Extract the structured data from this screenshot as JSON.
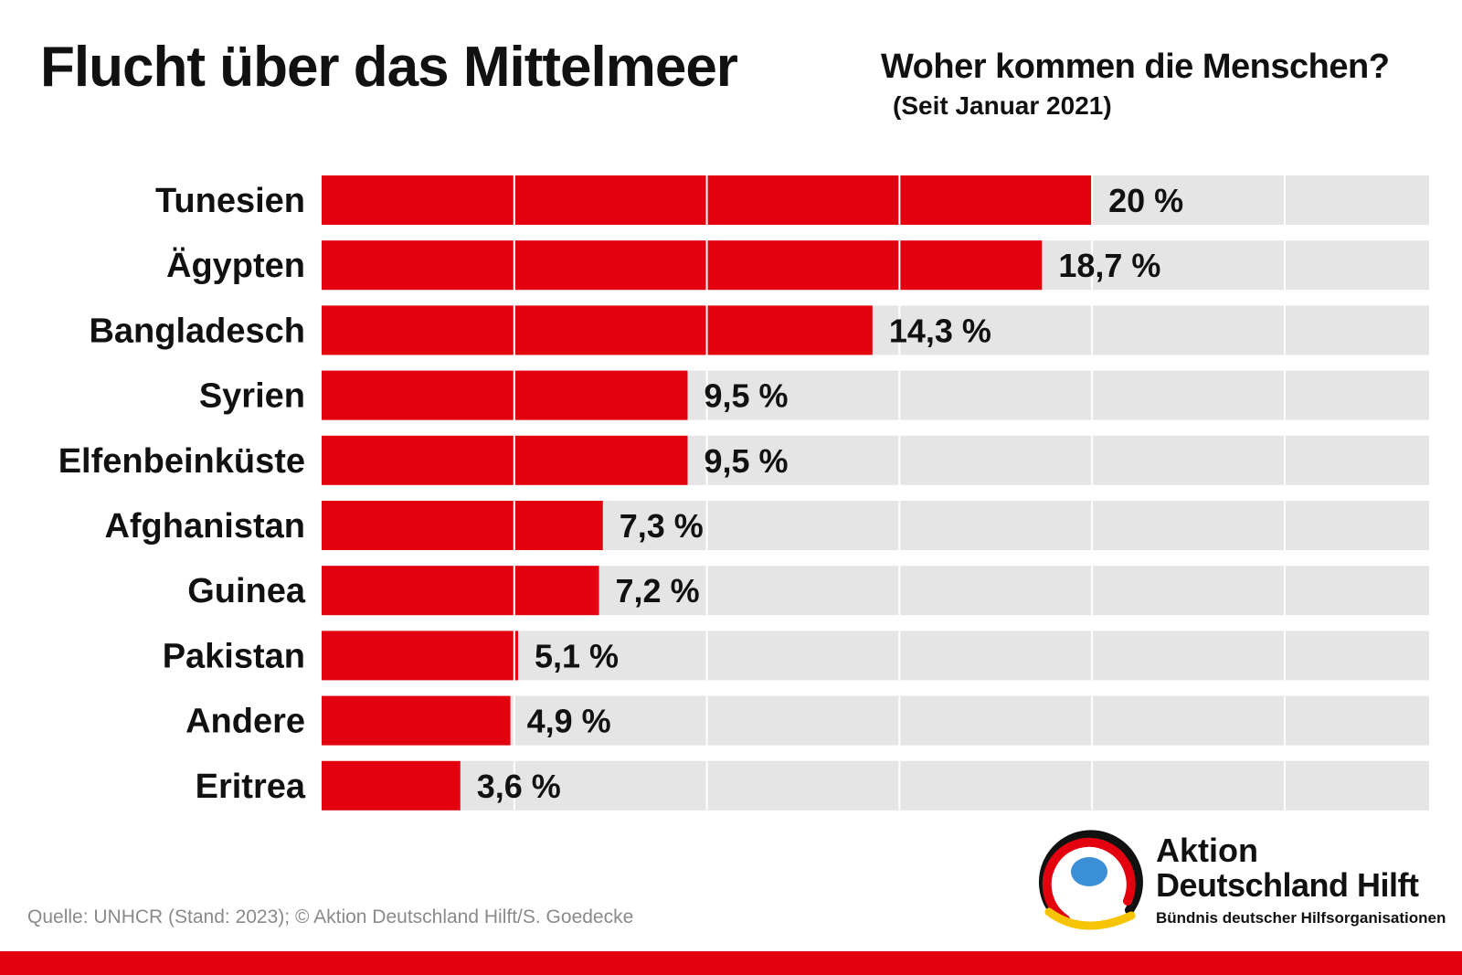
{
  "header": {
    "title": "Flucht über das Mittelmeer",
    "subtitle": "Woher kommen die Menschen?",
    "subtitle_note": "(Seit Januar 2021)"
  },
  "chart_data": {
    "type": "bar",
    "orientation": "horizontal",
    "title": "Woher kommen die Menschen?",
    "categories": [
      "Tunesien",
      "Ägypten",
      "Bangladesch",
      "Syrien",
      "Elfenbeinküste",
      "Afghanistan",
      "Guinea",
      "Pakistan",
      "Andere",
      "Eritrea"
    ],
    "values": [
      20,
      18.7,
      14.3,
      9.5,
      9.5,
      7.3,
      7.2,
      5.1,
      4.9,
      3.6
    ],
    "value_labels": [
      "20 %",
      "18,7 %",
      "14,3 %",
      "9,5 %",
      "9,5 %",
      "7,3 %",
      "7,2 %",
      "5,1 %",
      "4,9 %",
      "3,6 %"
    ],
    "xlim": [
      0,
      28.75
    ],
    "gridlines": [
      5,
      10,
      15,
      20,
      25
    ],
    "unit": "%",
    "bar_color": "#e3000f",
    "track_color": "#e5e5e5"
  },
  "footer": {
    "source": "Quelle: UNHCR (Stand: 2023); © Aktion Deutschland Hilft/S. Goedecke",
    "logo_line1": "Aktion",
    "logo_line2": "Deutschland Hilft",
    "logo_line3": "Bündnis deutscher Hilfsorganisationen"
  },
  "colors": {
    "accent": "#e3000f",
    "logo_blue": "#3a8fd6",
    "logo_yellow": "#f6c400",
    "logo_black": "#111111"
  }
}
